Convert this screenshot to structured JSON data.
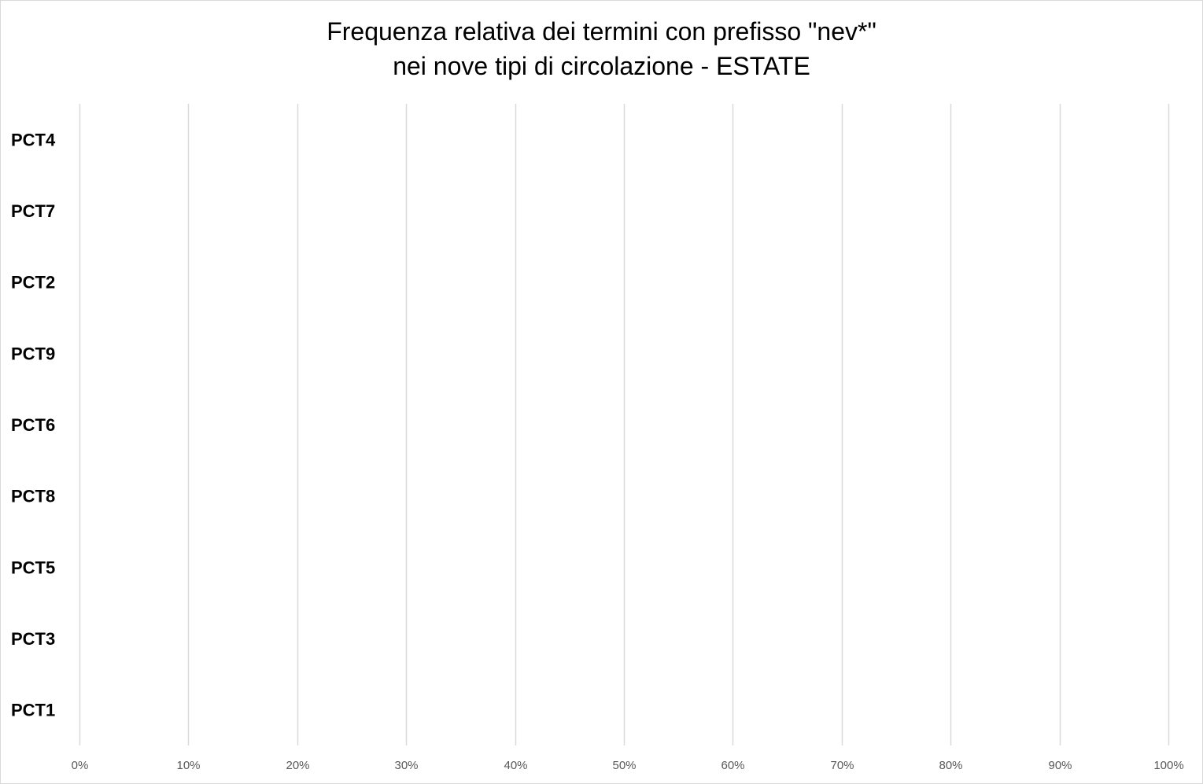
{
  "chart_data": {
    "type": "bar",
    "orientation": "horizontal",
    "stacked": true,
    "title_line1": "Frequenza relativa dei termini con prefisso \"nev*\"",
    "title_line2": "nei nove tipi di circolazione - ESTATE",
    "categories": [
      "PCT4",
      "PCT7",
      "PCT2",
      "PCT9",
      "PCT6",
      "PCT8",
      "PCT5",
      "PCT3",
      "PCT1"
    ],
    "values": [
      0,
      0,
      0,
      0,
      0,
      0,
      0,
      0,
      0
    ],
    "xlim": [
      0,
      1
    ],
    "x_ticks": [
      0,
      0.1,
      0.2,
      0.3,
      0.4,
      0.5,
      0.6,
      0.7,
      0.8,
      0.9,
      1.0
    ],
    "x_tick_labels": [
      "0%",
      "10%",
      "20%",
      "30%",
      "40%",
      "50%",
      "60%",
      "70%",
      "80%",
      "90%",
      "100%"
    ],
    "xlabel": "",
    "ylabel": "",
    "grid": true,
    "legend": "none",
    "colors": {
      "grid": "#d9d9d9",
      "tick_text": "#595959",
      "category_text": "#000000",
      "bar": "#4472c4"
    }
  }
}
